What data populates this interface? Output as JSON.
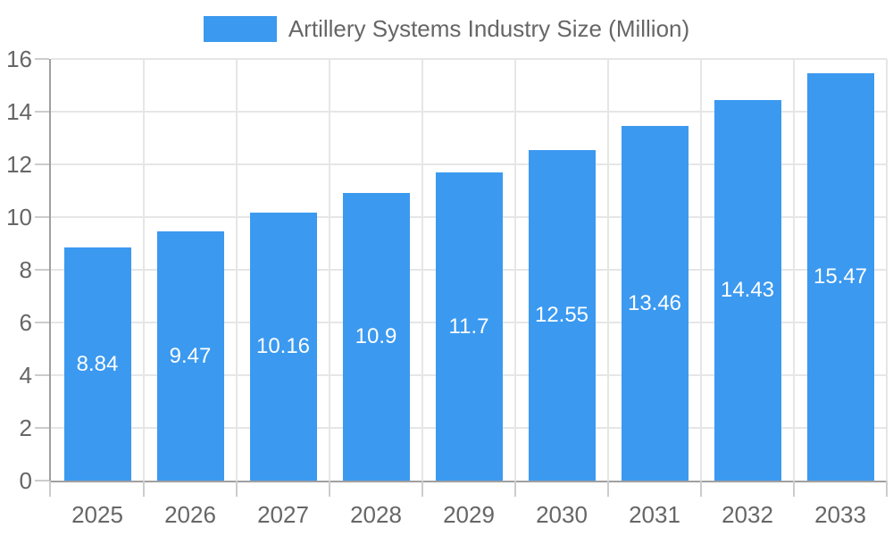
{
  "chart_data": {
    "type": "bar",
    "title": "Artillery Systems Industry Size (Million)",
    "categories": [
      "2025",
      "2026",
      "2027",
      "2028",
      "2029",
      "2030",
      "2031",
      "2032",
      "2033"
    ],
    "series": [
      {
        "name": "Artillery Systems Industry Size (Million)",
        "values": [
          8.84,
          9.47,
          10.16,
          10.9,
          11.7,
          12.55,
          13.46,
          14.43,
          15.47
        ],
        "value_labels": [
          "8.84",
          "9.47",
          "10.16",
          "10.9",
          "11.7",
          "12.55",
          "13.46",
          "14.43",
          "15.47"
        ],
        "color": "#3B99F0"
      }
    ],
    "xlabel": "",
    "ylabel": "",
    "ylim": [
      0,
      16
    ],
    "y_ticks": [
      0,
      2,
      4,
      6,
      8,
      10,
      12,
      14,
      16
    ],
    "grid": true,
    "legend_position": "top"
  },
  "legend": {
    "label": "Artillery Systems Industry Size (Million)"
  },
  "colors": {
    "bar": "#3B99F0",
    "bar_label_text": "#FFFFFF",
    "axis_text": "#666666",
    "legend_text": "#666666",
    "gridline": "#E6E6E6",
    "axis_line": "#A0A0A0",
    "tick_mark": "#CCCCCC",
    "background": "#FFFFFF"
  }
}
